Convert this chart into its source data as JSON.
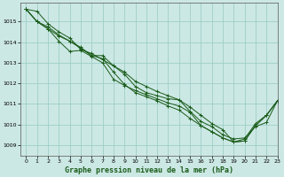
{
  "xlabel": "Graphe pression niveau de la mer (hPa)",
  "background_color": "#cce8e4",
  "grid_color": "#9ecec8",
  "line_color": "#1a5c1a",
  "xlim": [
    -0.5,
    23
  ],
  "ylim": [
    1008.5,
    1015.9
  ],
  "yticks": [
    1009,
    1010,
    1011,
    1012,
    1013,
    1014,
    1015
  ],
  "xticks": [
    0,
    1,
    2,
    3,
    4,
    5,
    6,
    7,
    8,
    9,
    10,
    11,
    12,
    13,
    14,
    15,
    16,
    17,
    18,
    19,
    20,
    21,
    22,
    23
  ],
  "series": [
    [
      1015.6,
      1015.5,
      1014.9,
      1014.5,
      1014.2,
      1013.65,
      1013.45,
      1013.15,
      1012.85,
      1012.55,
      1012.1,
      1011.85,
      1011.6,
      1011.4,
      1011.2,
      1010.65,
      1010.15,
      1009.9,
      1009.5,
      1009.3,
      1009.35,
      1009.9,
      1010.1,
      1011.15
    ],
    [
      1015.6,
      1015.0,
      1014.75,
      1014.35,
      1014.05,
      1013.7,
      1013.35,
      1013.2,
      1012.55,
      1011.95,
      1011.55,
      1011.35,
      1011.15,
      1010.9,
      1010.7,
      1010.3,
      1009.95,
      1009.65,
      1009.35,
      1009.15,
      1009.3,
      1010.05,
      1010.45,
      1011.15
    ],
    [
      1015.6,
      1015.0,
      1014.65,
      1014.3,
      1014.05,
      1013.75,
      1013.35,
      1013.35,
      1012.85,
      1012.45,
      1011.85,
      1011.55,
      1011.4,
      1011.25,
      1011.2,
      1010.85,
      1010.45,
      1010.05,
      1009.75,
      1009.15,
      1009.2,
      1009.95,
      1010.45,
      1011.15
    ],
    [
      1015.6,
      1015.0,
      1014.65,
      1014.05,
      1013.55,
      1013.6,
      1013.3,
      1013.0,
      1012.2,
      1011.9,
      1011.65,
      1011.45,
      1011.25,
      1011.05,
      1010.9,
      1010.6,
      1009.95,
      1009.65,
      1009.35,
      1009.15,
      1009.2,
      1009.95,
      1010.45,
      1011.15
    ]
  ]
}
